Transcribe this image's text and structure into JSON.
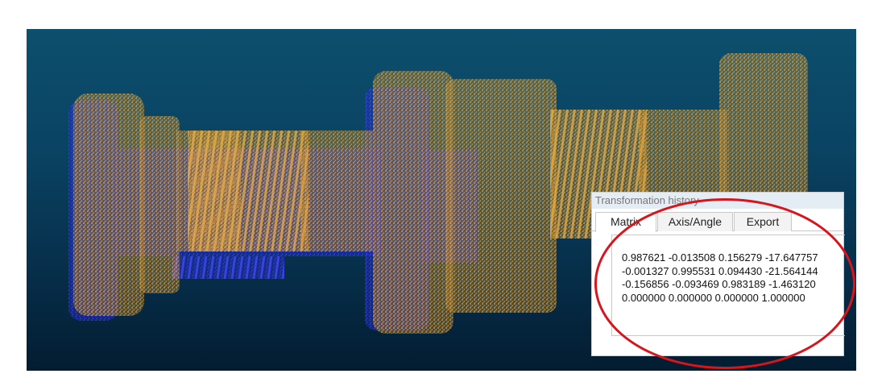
{
  "panel": {
    "title": "Transformation history",
    "tabs": [
      {
        "label": "Matrix",
        "active": true
      },
      {
        "label": "Axis/Angle",
        "active": false
      },
      {
        "label": "Export",
        "active": false
      }
    ],
    "matrix_rows": [
      "0.987621 -0.013508 0.156279 -17.647757",
      "-0.001327 0.995531 0.094430 -21.564144",
      "-0.156856 -0.093469 0.983189 -1.463120",
      "0.000000 0.000000 0.000000 1.000000"
    ]
  },
  "colors": {
    "cloud_orange": "#f2a42b",
    "cloud_blue": "#2a2bd8",
    "highlight_red": "#d8141c",
    "viewport_top": "#0d4f6e",
    "viewport_bottom": "#031c30"
  }
}
